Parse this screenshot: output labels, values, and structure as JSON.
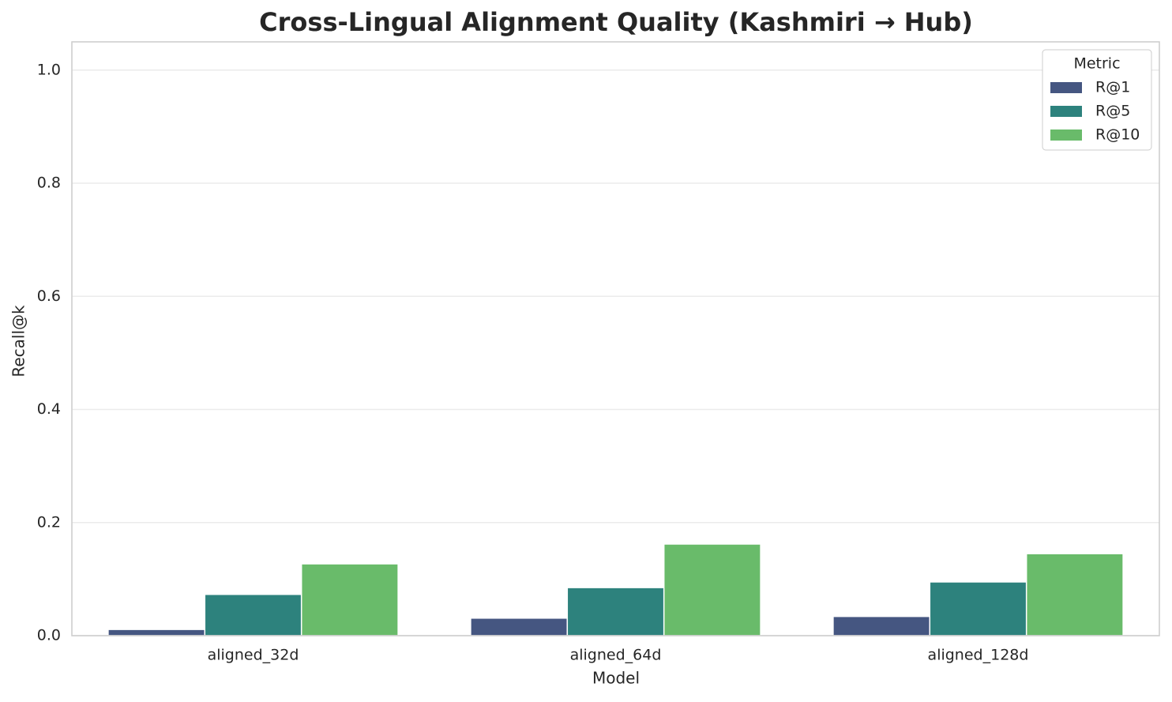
{
  "chart_data": {
    "type": "bar",
    "title": "Cross-Lingual Alignment Quality (Kashmiri → Hub)",
    "x_label": "Model",
    "y_label": "Recall@k",
    "categories": [
      "aligned_32d",
      "aligned_64d",
      "aligned_128d"
    ],
    "series": [
      {
        "name": "R@1",
        "color": "#455681",
        "values": [
          0.011,
          0.031,
          0.034
        ]
      },
      {
        "name": "R@5",
        "color": "#2d827d",
        "values": [
          0.073,
          0.085,
          0.095
        ]
      },
      {
        "name": "R@10",
        "color": "#69bb6a",
        "values": [
          0.127,
          0.162,
          0.145
        ]
      }
    ],
    "ylim": [
      0,
      1.05
    ],
    "yticks": [
      {
        "value": 0,
        "label": "0.0"
      },
      0.2,
      0.4,
      0.6,
      0.8,
      {
        "value": 1,
        "label": "1.0"
      }
    ],
    "grid": true,
    "legend_title": "Metric",
    "legend_position": "upper-right"
  }
}
